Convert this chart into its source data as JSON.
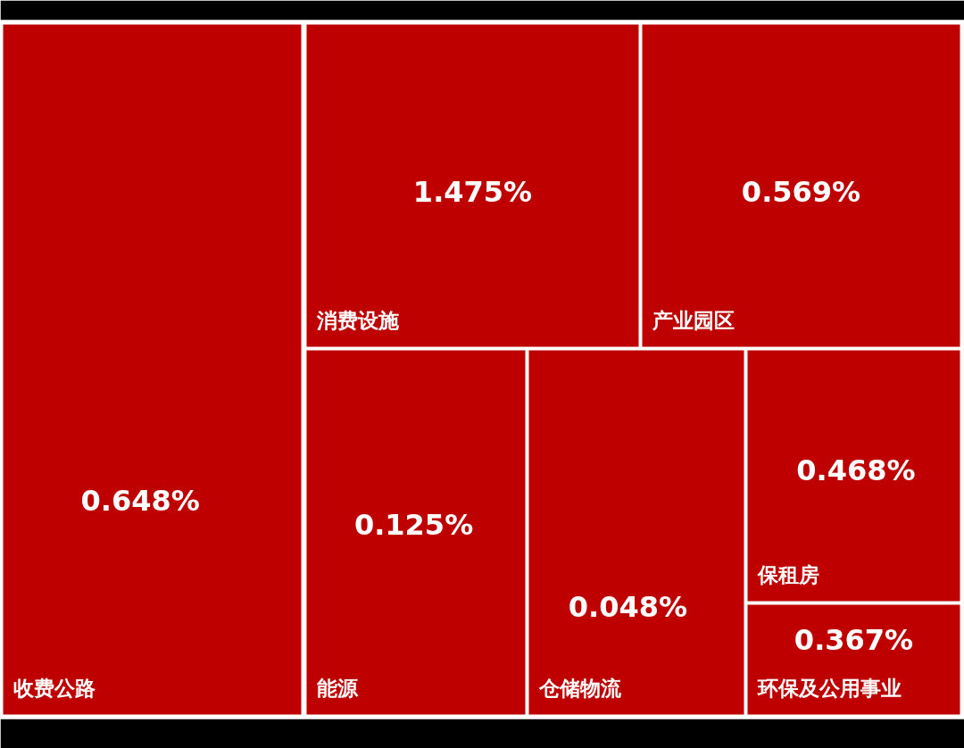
{
  "chart_data": {
    "type": "other",
    "categories": [
      "收费公路",
      "消费设施",
      "产业园区",
      "能源",
      "仓储物流",
      "保租房",
      "环保及公用事业"
    ],
    "values": [
      0.648,
      1.475,
      0.569,
      0.125,
      0.048,
      0.468,
      0.367
    ],
    "value_labels": [
      "0.648%",
      "1.475%",
      "0.569%",
      "0.125%",
      "0.048%",
      "0.468%",
      "0.367%"
    ],
    "color": "#bf0000"
  }
}
